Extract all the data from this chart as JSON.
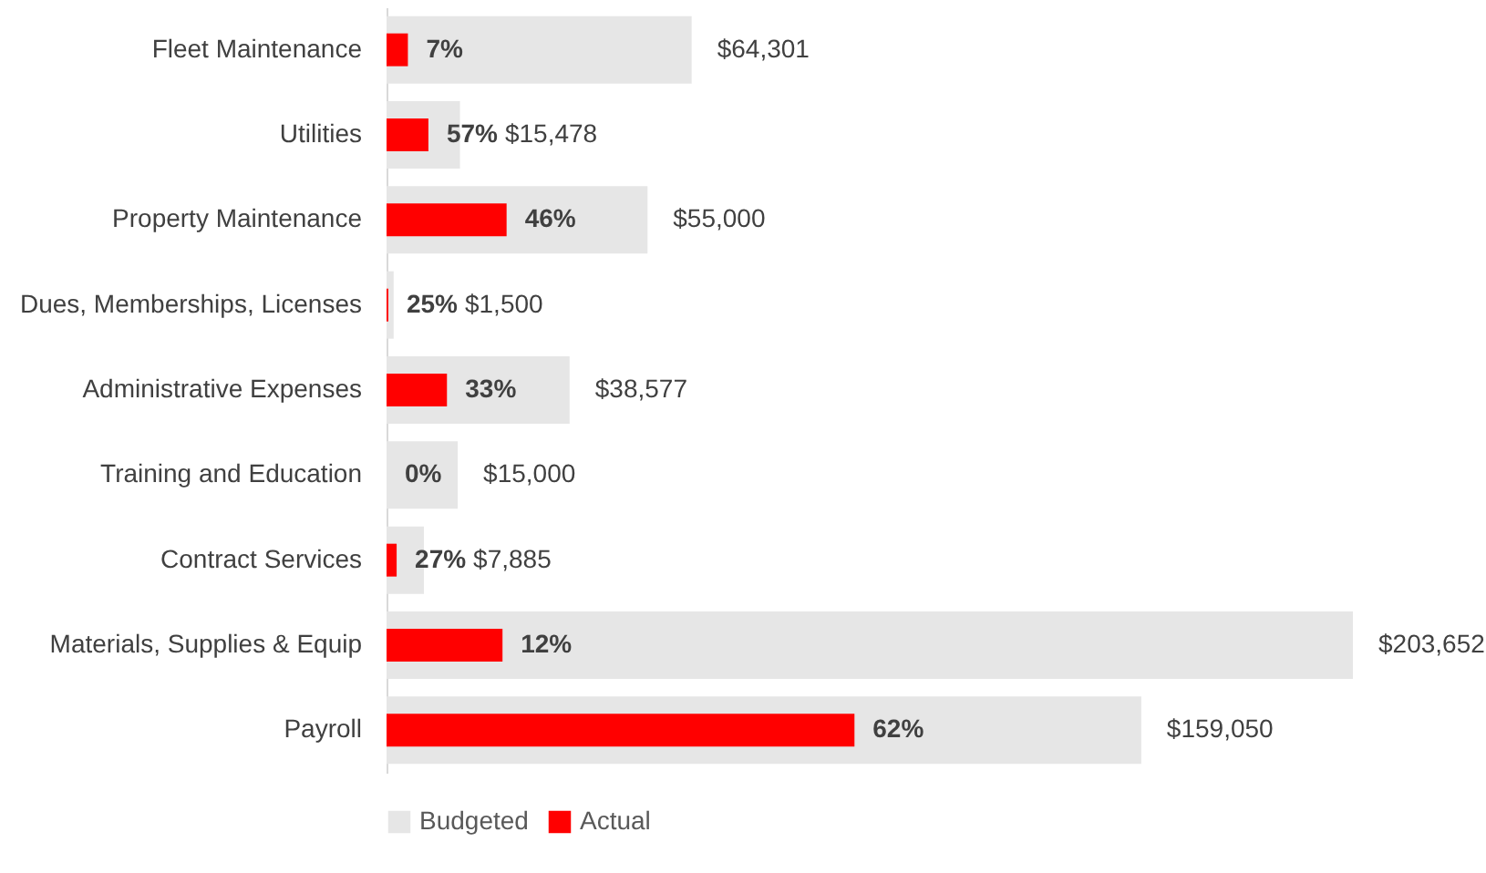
{
  "chart_data": {
    "type": "bar",
    "orientation": "horizontal",
    "categories": [
      "Fleet Maintenance",
      "Utilities",
      "Property Maintenance",
      "Dues, Memberships, Licenses",
      "Administrative Expenses",
      "Training and Education",
      "Contract Services",
      "Materials, Supplies & Equip",
      "Payroll"
    ],
    "series": [
      {
        "name": "Budgeted",
        "color": "#e6e6e6",
        "values": [
          64301,
          15478,
          55000,
          1500,
          38577,
          15000,
          7885,
          203652,
          159050
        ],
        "value_labels": [
          "$64,301",
          "$15,478",
          "$55,000",
          "$1,500",
          "$38,577",
          "$15,000",
          "$7,885",
          "$203,652",
          "$159,050"
        ]
      },
      {
        "name": "Actual",
        "color": "#ff0000",
        "values": [
          4501,
          8822,
          25300,
          375,
          12730,
          0,
          2129,
          24438,
          98611
        ]
      }
    ],
    "annotations": [
      {
        "text": "7%",
        "x": 4501,
        "y": "Fleet Maintenance"
      },
      {
        "text": "57%",
        "x": 8822,
        "y": "Utilities"
      },
      {
        "text": "46%",
        "x": 25300,
        "y": "Property Maintenance"
      },
      {
        "text": "25%",
        "x": 375,
        "y": "Dues, Memberships, Licenses"
      },
      {
        "text": "33%",
        "x": 12730,
        "y": "Administrative Expenses"
      },
      {
        "text": "0%",
        "x": 0,
        "y": "Training and Education"
      },
      {
        "text": "27%",
        "x": 2129,
        "y": "Contract Services"
      },
      {
        "text": "12%",
        "x": 24438,
        "y": "Materials, Supplies & Equip"
      },
      {
        "text": "62%",
        "x": 98611,
        "y": "Payroll"
      }
    ],
    "legend": "bottom"
  }
}
